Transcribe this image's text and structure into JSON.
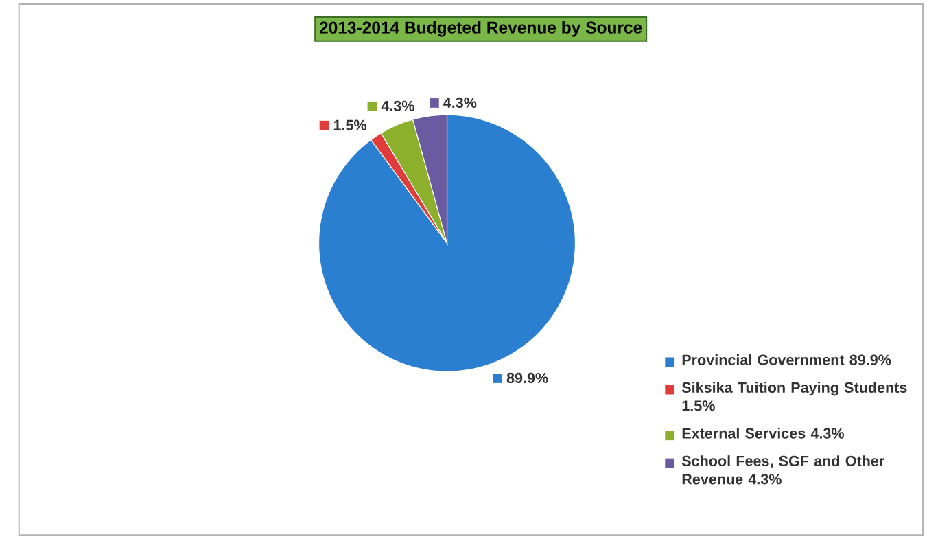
{
  "chart_data": {
    "type": "pie",
    "title": "2013-2014 Budgeted Revenue by Source",
    "categories": [
      "Provincial Government 89.9%",
      "Siksika Tuition Paying Students 1.5%",
      "External Services 4.3%",
      "School Fees, SGF and Other Revenue 4.3%"
    ],
    "values": [
      89.9,
      1.5,
      4.3,
      4.3
    ],
    "colors": [
      "#2a7fd0",
      "#e03c3c",
      "#8cb02c",
      "#6a5aa0"
    ],
    "value_labels": [
      "89.9%",
      "1.5%",
      "4.3%",
      "4.3%"
    ],
    "legend": "bottom right"
  }
}
